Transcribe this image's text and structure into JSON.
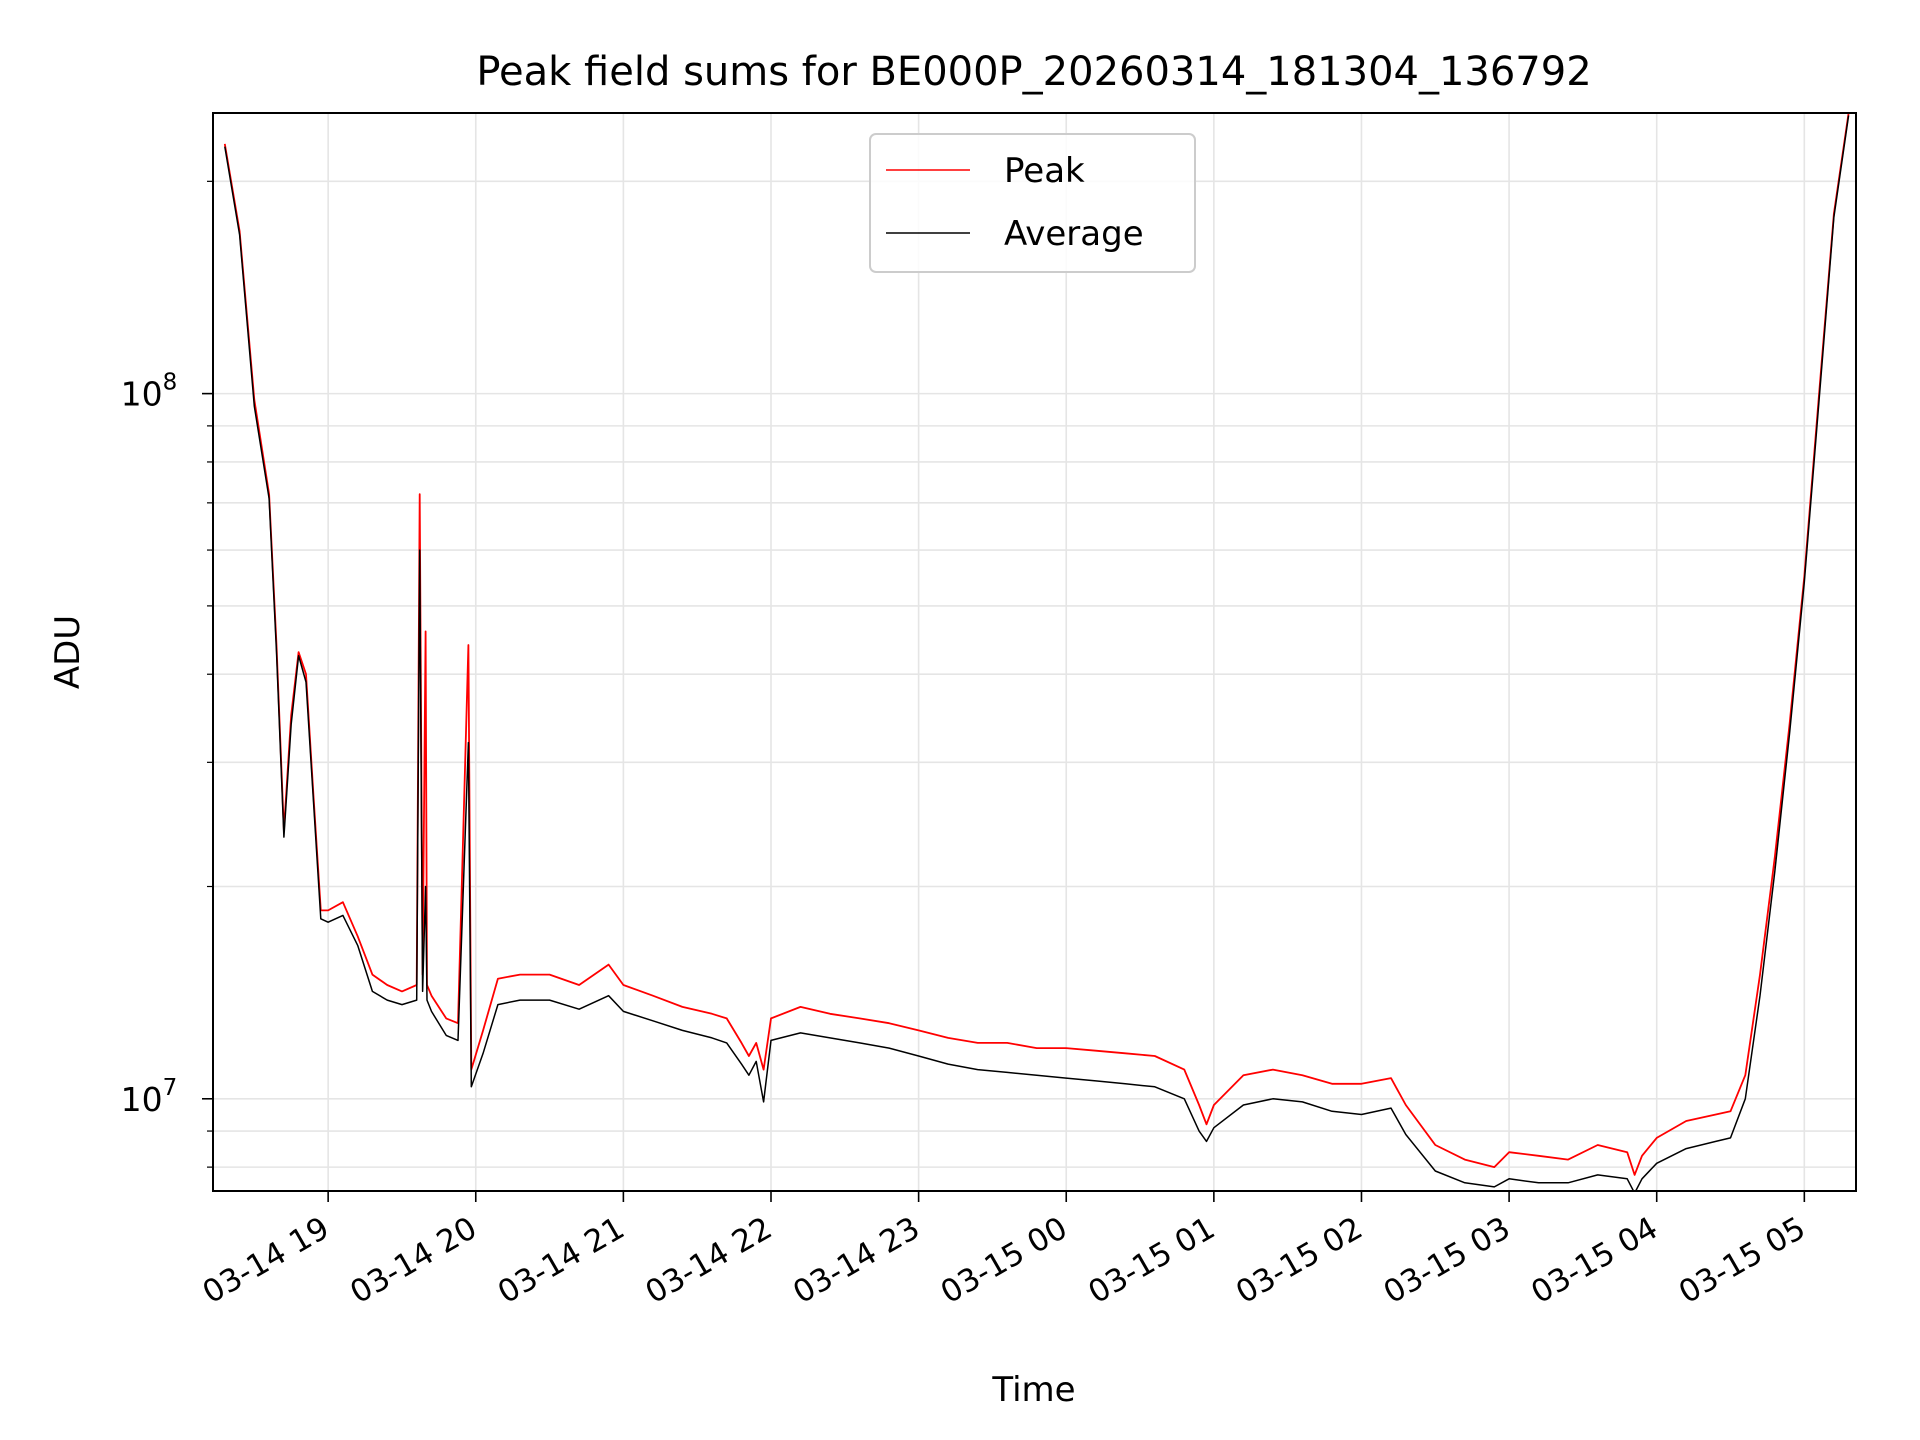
{
  "chart_data": {
    "type": "line",
    "title": "Peak field sums for BE000P_20260314_181304_136792",
    "xlabel": "Time",
    "ylabel": "ADU",
    "yscale": "log",
    "xlim_hours": [
      18.22,
      29.35
    ],
    "ylim": [
      7400000,
      250000000
    ],
    "grid": true,
    "legend_position": "top-center",
    "x_ticks": [
      {
        "hours": 19,
        "label": "03-14 19"
      },
      {
        "hours": 20,
        "label": "03-14 20"
      },
      {
        "hours": 21,
        "label": "03-14 21"
      },
      {
        "hours": 22,
        "label": "03-14 22"
      },
      {
        "hours": 23,
        "label": "03-14 23"
      },
      {
        "hours": 24,
        "label": "03-15 00"
      },
      {
        "hours": 25,
        "label": "03-15 01"
      },
      {
        "hours": 26,
        "label": "03-15 02"
      },
      {
        "hours": 27,
        "label": "03-15 03"
      },
      {
        "hours": 28,
        "label": "03-15 04"
      },
      {
        "hours": 29,
        "label": "03-15 05"
      }
    ],
    "y_ticks": [
      {
        "value": 10000000,
        "base": "10",
        "exp": "7"
      },
      {
        "value": 100000000,
        "base": "10",
        "exp": "8"
      }
    ],
    "series": [
      {
        "name": "Peak",
        "color": "#ff0000",
        "x_hours": [
          18.3,
          18.4,
          18.5,
          18.6,
          18.65,
          18.7,
          18.75,
          18.8,
          18.85,
          18.9,
          18.95,
          19.0,
          19.1,
          19.2,
          19.3,
          19.4,
          19.5,
          19.6,
          19.62,
          19.64,
          19.66,
          19.67,
          19.7,
          19.8,
          19.88,
          19.95,
          19.97,
          20.05,
          20.15,
          20.3,
          20.5,
          20.7,
          20.9,
          21.0,
          21.2,
          21.4,
          21.6,
          21.7,
          21.8,
          21.85,
          21.9,
          21.95,
          22.0,
          22.2,
          22.4,
          22.6,
          22.8,
          23.0,
          23.2,
          23.4,
          23.6,
          23.8,
          24.0,
          24.2,
          24.4,
          24.6,
          24.8,
          24.9,
          24.95,
          25.0,
          25.2,
          25.4,
          25.6,
          25.8,
          26.0,
          26.2,
          26.3,
          26.5,
          26.7,
          26.9,
          27.0,
          27.2,
          27.4,
          27.6,
          27.8,
          27.85,
          27.9,
          28.0,
          28.2,
          28.4,
          28.5,
          28.6,
          28.7,
          28.8,
          28.9,
          29.0,
          29.1,
          29.2,
          29.3
        ],
        "values": [
          226000000,
          170000000,
          98000000,
          72000000,
          44000000,
          24000000,
          35000000,
          43000000,
          40000000,
          27000000,
          18500000,
          18500000,
          19000000,
          17000000,
          15000000,
          14500000,
          14200000,
          14500000,
          72000000,
          15000000,
          46000000,
          14500000,
          14000000,
          13000000,
          12800000,
          44000000,
          11000000,
          12500000,
          14800000,
          15000000,
          15000000,
          14500000,
          15500000,
          14500000,
          14000000,
          13500000,
          13200000,
          13000000,
          12000000,
          11500000,
          12000000,
          11000000,
          13000000,
          13500000,
          13200000,
          13000000,
          12800000,
          12500000,
          12200000,
          12000000,
          12000000,
          11800000,
          11800000,
          11700000,
          11600000,
          11500000,
          11000000,
          9800000,
          9200000,
          9800000,
          10800000,
          11000000,
          10800000,
          10500000,
          10500000,
          10700000,
          9800000,
          8600000,
          8200000,
          8000000,
          8400000,
          8300000,
          8200000,
          8600000,
          8400000,
          7800000,
          8300000,
          8800000,
          9300000,
          9500000,
          9600000,
          10800000,
          15000000,
          22000000,
          34000000,
          55000000,
          100000000,
          180000000,
          250000000
        ]
      },
      {
        "name": "Average",
        "color": "#000000",
        "x_hours": [
          18.3,
          18.4,
          18.5,
          18.6,
          18.65,
          18.7,
          18.75,
          18.8,
          18.85,
          18.9,
          18.95,
          19.0,
          19.1,
          19.2,
          19.3,
          19.4,
          19.5,
          19.6,
          19.62,
          19.64,
          19.66,
          19.67,
          19.7,
          19.8,
          19.88,
          19.95,
          19.97,
          20.05,
          20.15,
          20.3,
          20.5,
          20.7,
          20.9,
          21.0,
          21.2,
          21.4,
          21.6,
          21.7,
          21.8,
          21.85,
          21.9,
          21.95,
          22.0,
          22.2,
          22.4,
          22.6,
          22.8,
          23.0,
          23.2,
          23.4,
          23.6,
          23.8,
          24.0,
          24.2,
          24.4,
          24.6,
          24.8,
          24.9,
          24.95,
          25.0,
          25.2,
          25.4,
          25.6,
          25.8,
          26.0,
          26.2,
          26.3,
          26.5,
          26.7,
          26.9,
          27.0,
          27.2,
          27.4,
          27.6,
          27.8,
          27.85,
          27.9,
          28.0,
          28.2,
          28.4,
          28.5,
          28.6,
          28.7,
          28.8,
          28.9,
          29.0,
          29.1,
          29.2,
          29.3
        ],
        "values": [
          224000000,
          168000000,
          96000000,
          71000000,
          43000000,
          23500000,
          34000000,
          42500000,
          39000000,
          26500000,
          18000000,
          17800000,
          18200000,
          16500000,
          14200000,
          13800000,
          13600000,
          13800000,
          60000000,
          14200000,
          20000000,
          13800000,
          13300000,
          12300000,
          12100000,
          32000000,
          10400000,
          11600000,
          13600000,
          13800000,
          13800000,
          13400000,
          14000000,
          13300000,
          12900000,
          12500000,
          12200000,
          12000000,
          11200000,
          10800000,
          11300000,
          9900000,
          12100000,
          12400000,
          12200000,
          12000000,
          11800000,
          11500000,
          11200000,
          11000000,
          10900000,
          10800000,
          10700000,
          10600000,
          10500000,
          10400000,
          10000000,
          9000000,
          8700000,
          9100000,
          9800000,
          10000000,
          9900000,
          9600000,
          9500000,
          9700000,
          8900000,
          7900000,
          7600000,
          7500000,
          7700000,
          7600000,
          7600000,
          7800000,
          7700000,
          7350000,
          7700000,
          8100000,
          8500000,
          8700000,
          8800000,
          10000000,
          14000000,
          21000000,
          33000000,
          54000000,
          98000000,
          178000000,
          248000000
        ]
      }
    ]
  }
}
